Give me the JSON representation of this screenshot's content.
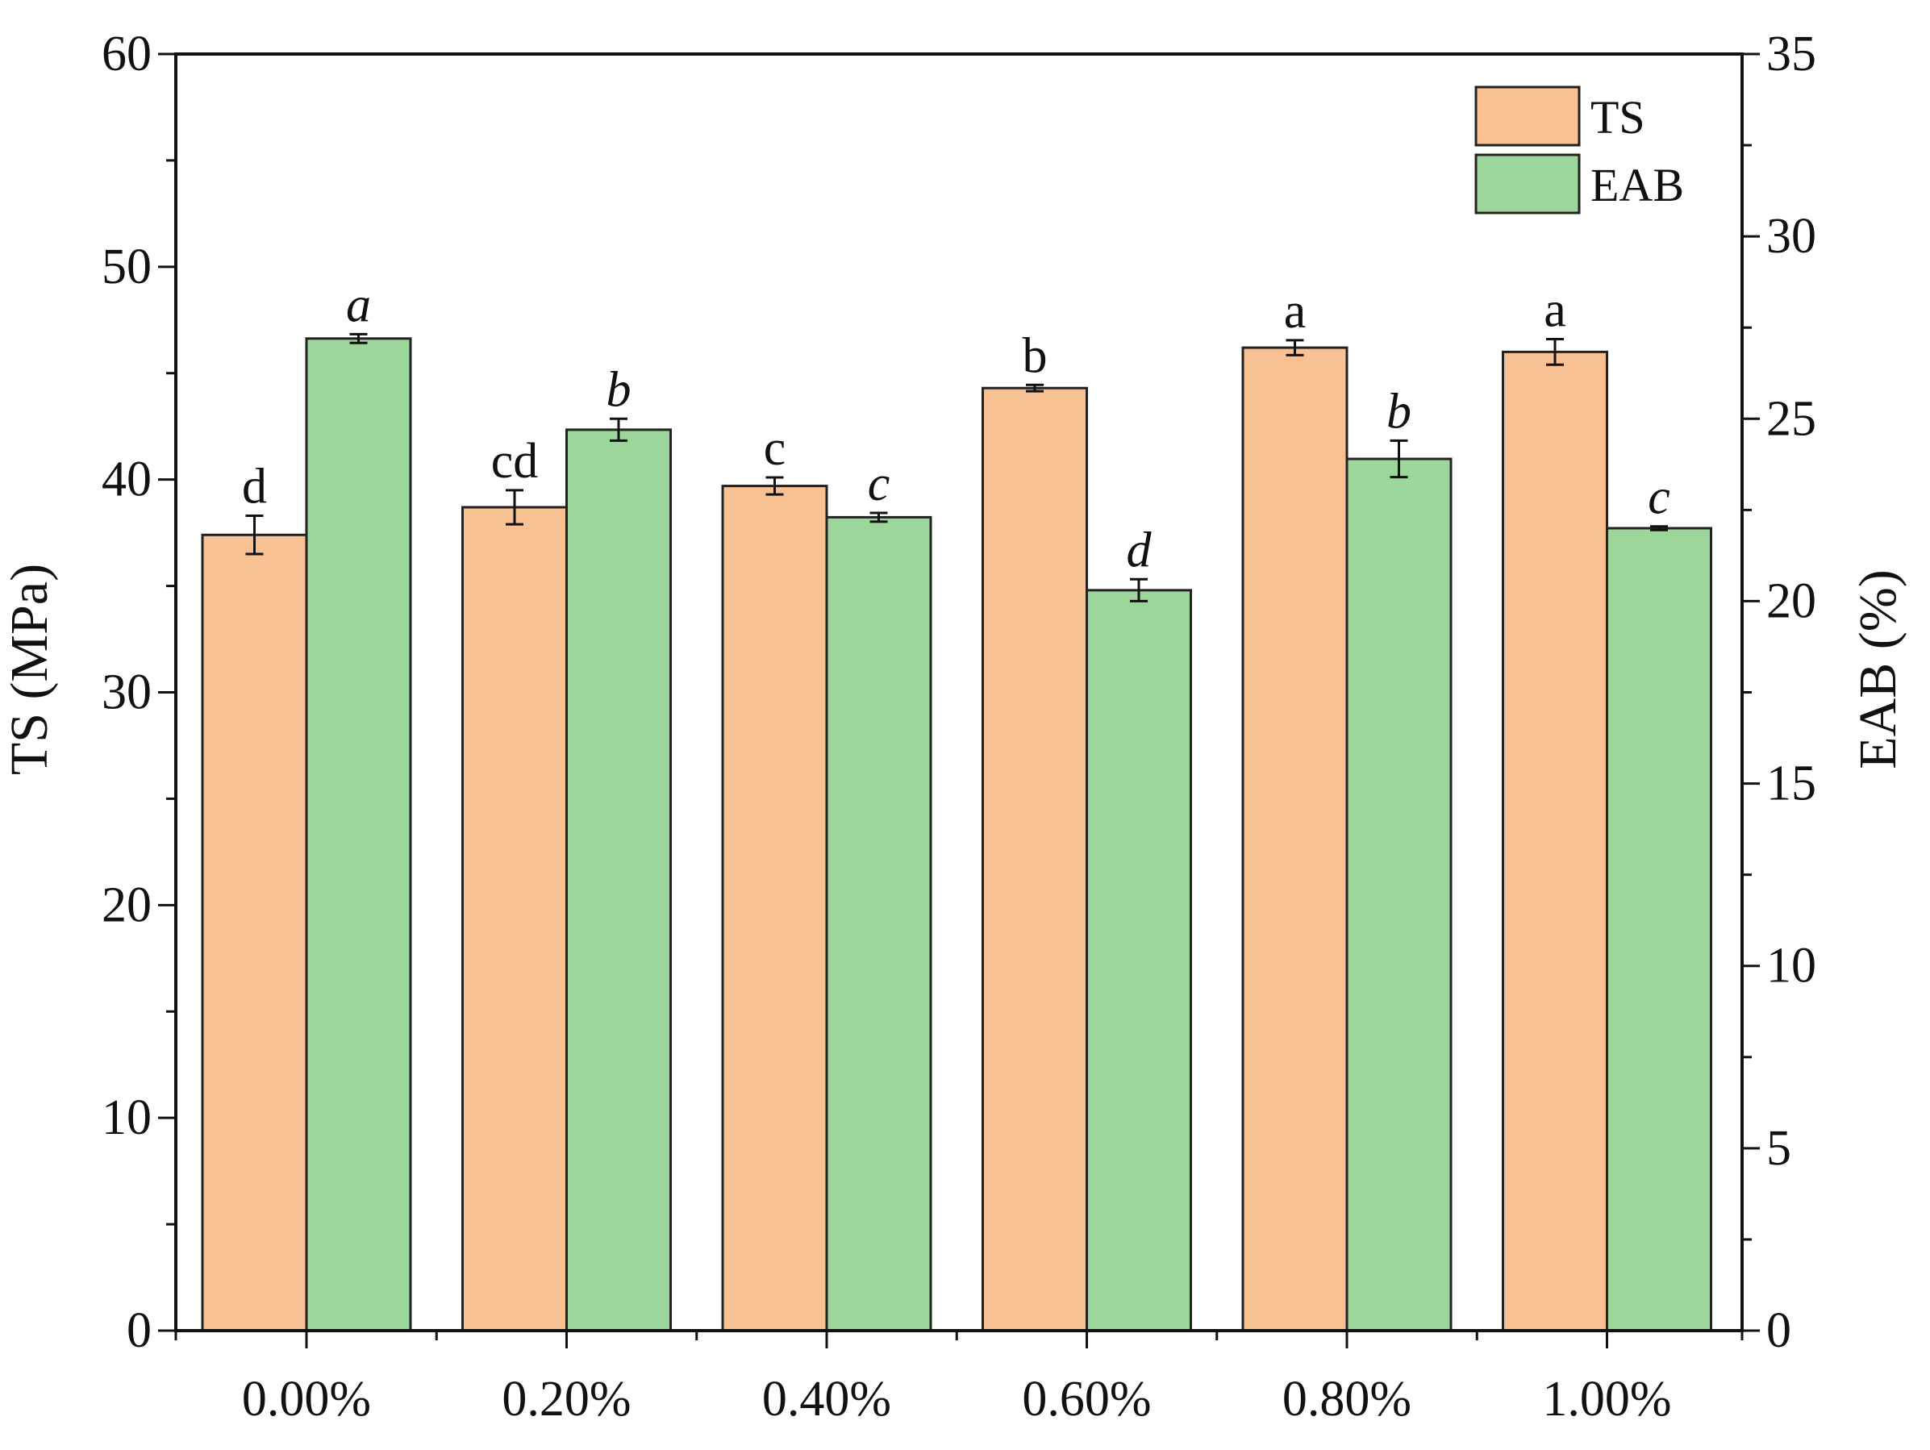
{
  "chart_data": {
    "type": "bar",
    "title": "",
    "categories": [
      "0.00%",
      "0.20%",
      "0.40%",
      "0.60%",
      "0.80%",
      "1.00%"
    ],
    "xlabel": "",
    "ylabel": "TS (MPa)",
    "y2label": "EAB (%)",
    "ylim": [
      0,
      60
    ],
    "y2lim": [
      0,
      35
    ],
    "yticks": [
      "0",
      "10",
      "20",
      "30",
      "40",
      "50",
      "60"
    ],
    "y2ticks": [
      "0",
      "5",
      "10",
      "15",
      "20",
      "25",
      "30",
      "35"
    ],
    "legend_position": "top-right",
    "series": [
      {
        "name": "TS",
        "axis": "left",
        "color": "#f8c194",
        "values": [
          37.4,
          38.7,
          39.7,
          44.3,
          46.2,
          46.0
        ],
        "errors": [
          0.9,
          0.8,
          0.4,
          0.15,
          0.35,
          0.6
        ],
        "labels": [
          "d",
          "cd",
          "c",
          "b",
          "a",
          "a"
        ],
        "label_style": "normal"
      },
      {
        "name": "EAB",
        "axis": "right",
        "color": "#9dd69a",
        "values": [
          27.2,
          24.7,
          22.3,
          20.3,
          23.9,
          22.0
        ],
        "errors": [
          0.12,
          0.3,
          0.12,
          0.3,
          0.5,
          0.05
        ],
        "labels": [
          "a",
          "b",
          "c",
          "d",
          "b",
          "c"
        ],
        "label_style": "italic"
      }
    ]
  }
}
